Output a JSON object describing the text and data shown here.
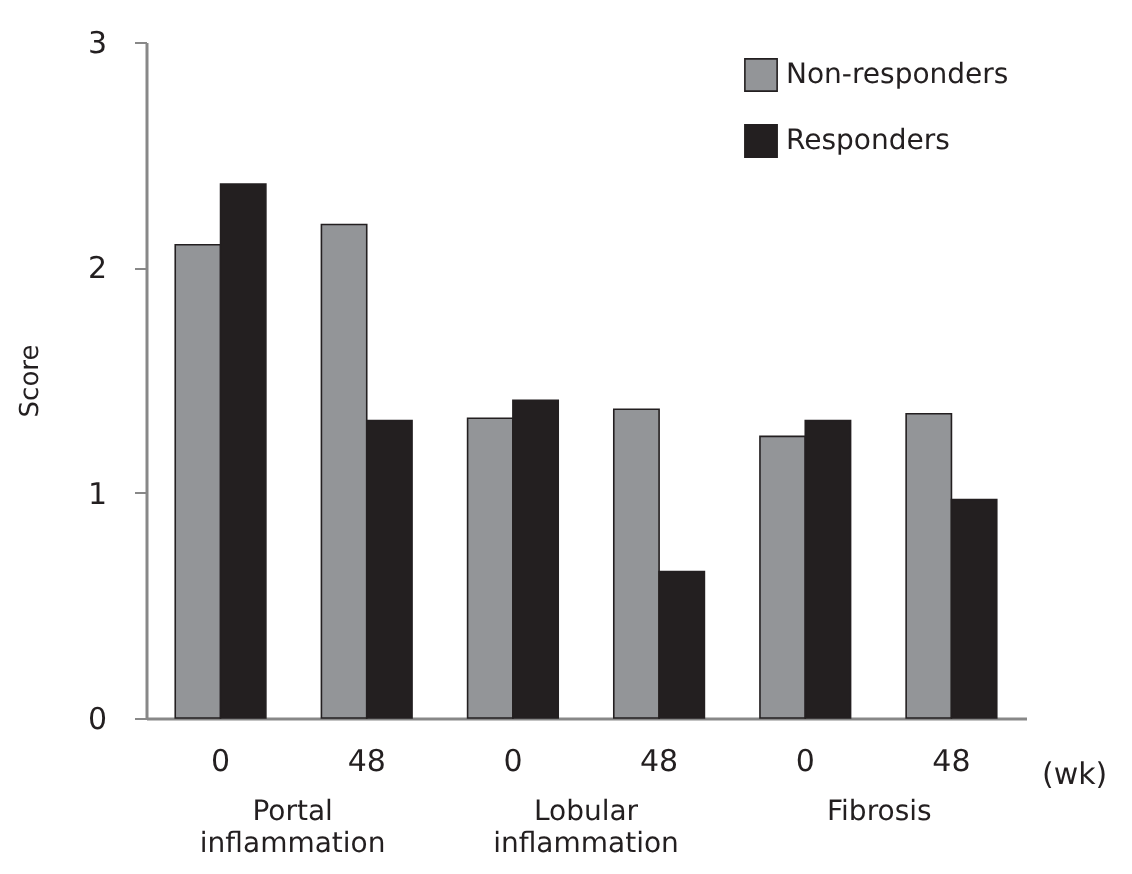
{
  "chart_data": {
    "type": "bar",
    "categories": [
      "0",
      "48",
      "0",
      "48",
      "0",
      "48"
    ],
    "xlabel": "(wk)",
    "ylabel": "Score",
    "series": [
      {
        "name": "Non-responders",
        "color": "#939598",
        "values": [
          2.1,
          2.19,
          1.33,
          1.37,
          1.25,
          1.35
        ]
      },
      {
        "name": "Responders",
        "color": "#231f20",
        "values": [
          2.37,
          1.32,
          1.41,
          0.65,
          1.32,
          0.97
        ]
      }
    ],
    "annotations": [
      "Portal inflammation",
      "Lobular inflammation",
      "Fibrosis"
    ],
    "ylim": [
      0,
      3
    ],
    "yticks": [
      0,
      1,
      2,
      3
    ],
    "grid": false,
    "legend": "top right"
  }
}
